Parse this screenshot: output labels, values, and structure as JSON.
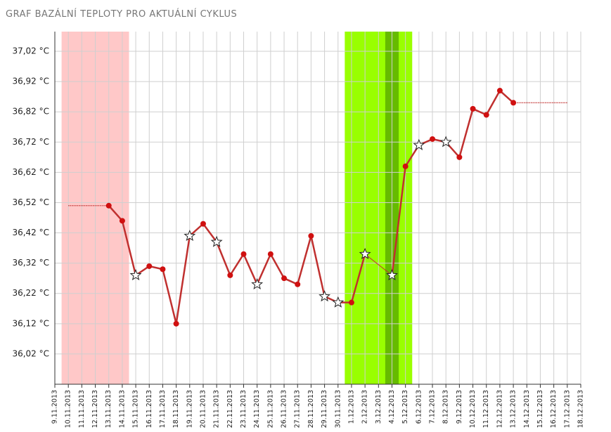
{
  "chart_data": {
    "type": "line",
    "title": "GRAF BAZÁLNÍ TEPLOTY PRO AKTUÁLNÍ CYKLUS",
    "categories": [
      "9.11.2013",
      "10.11.2013",
      "11.11.2013",
      "12.11.2013",
      "13.11.2013",
      "14.11.2013",
      "15.11.2013",
      "16.11.2013",
      "17.11.2013",
      "18.11.2013",
      "19.11.2013",
      "20.11.2013",
      "21.11.2013",
      "22.11.2013",
      "23.11.2013",
      "24.11.2013",
      "25.11.2013",
      "26.11.2013",
      "27.11.2013",
      "28.11.2013",
      "29.11.2013",
      "30.11.2013",
      "1.12.2013",
      "2.12.2013",
      "3.12.2013",
      "4.12.2013",
      "5.12.2013",
      "6.12.2013",
      "7.12.2013",
      "8.12.2013",
      "9.12.2013",
      "10.12.2013",
      "11.12.2013",
      "12.12.2013",
      "13.12.2013",
      "14.12.2013",
      "15.12.2013",
      "16.12.2013",
      "17.12.2013",
      "18.12.2013"
    ],
    "series": [
      {
        "color": "#c0302f",
        "values": [
          null,
          null,
          null,
          null,
          36.51,
          36.46,
          36.28,
          36.31,
          36.3,
          36.12,
          36.41,
          36.45,
          36.39,
          36.28,
          36.35,
          36.25,
          36.35,
          36.27,
          36.25,
          36.41,
          36.21,
          36.19,
          36.19,
          36.35,
          null,
          36.28,
          36.64,
          36.71,
          36.73,
          36.72,
          36.67,
          36.83,
          36.81,
          36.89,
          36.85,
          null,
          null,
          null,
          null,
          null
        ]
      }
    ],
    "stars": [
      "15.11.2013",
      "19.11.2013",
      "21.11.2013",
      "24.11.2013",
      "29.11.2013",
      "30.11.2013",
      "2.12.2013",
      "4.12.2013",
      "6.12.2013",
      "8.12.2013"
    ],
    "bridges": [
      {
        "from": "2.12.2013",
        "to": "4.12.2013"
      }
    ],
    "extensions": [
      {
        "from": "10.11.2013",
        "to": "13.11.2013"
      },
      {
        "from": "13.12.2013",
        "to": "17.12.2013"
      }
    ],
    "bands": [
      {
        "from": "10.11.2013",
        "to": "14.11.2013",
        "color": "#ffc8c8"
      },
      {
        "from": "1.12.2013",
        "to": "5.12.2013",
        "color": "#99ff00"
      },
      {
        "from": "4.12.2013",
        "to": "4.12.2013",
        "color": "#66bb00"
      }
    ],
    "ylim": [
      35.92,
      37.085
    ],
    "yticks": [
      {
        "value": 36.02,
        "label": "36,02 °C"
      },
      {
        "value": 36.12,
        "label": "36,12 °C"
      },
      {
        "value": 36.22,
        "label": "36,22 °C"
      },
      {
        "value": 36.32,
        "label": "36,32 °C"
      },
      {
        "value": 36.42,
        "label": "36,42 °C"
      },
      {
        "value": 36.52,
        "label": "36,52 °C"
      },
      {
        "value": 36.62,
        "label": "36,62 °C"
      },
      {
        "value": 36.72,
        "label": "36,72 °C"
      },
      {
        "value": 36.82,
        "label": "36,82 °C"
      },
      {
        "value": 36.92,
        "label": "36,92 °C"
      },
      {
        "value": 37.02,
        "label": "37,02 °C"
      }
    ],
    "grid": true
  }
}
